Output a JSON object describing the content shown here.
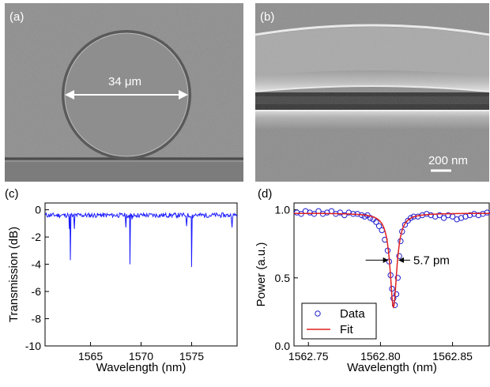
{
  "panels": {
    "a": {
      "label": "(a)",
      "scale_text": "34 μm"
    },
    "b": {
      "label": "(b)",
      "scale_text": "200 nm"
    }
  },
  "chart_data": [
    {
      "panel": "(c)",
      "type": "line",
      "xlabel": "Wavelength (nm)",
      "ylabel": "Transmission (dB)",
      "xlim": [
        1560.5,
        1579.5
      ],
      "ylim": [
        -10,
        0.5
      ],
      "xticks": [
        1565,
        1570,
        1575
      ],
      "yticks": [
        0,
        -2,
        -4,
        -6,
        -8,
        -10
      ],
      "grid": false,
      "series": [
        {
          "color": "#1a1aff",
          "baseline_db": -0.4,
          "x": [
            1560.5,
            1562.3,
            1562.8,
            1562.9,
            1563.0,
            1563.2,
            1563.4,
            1564.0,
            1566.0,
            1568.0,
            1568.5,
            1568.7,
            1568.8,
            1568.9,
            1569.0,
            1569.1,
            1569.3,
            1569.5,
            1571.0,
            1573.0,
            1574.3,
            1574.5,
            1574.9,
            1575.0,
            1575.1,
            1575.2,
            1575.4,
            1577.0,
            1578.8,
            1579.0,
            1579.2,
            1579.5
          ],
          "y": [
            -0.3,
            -0.35,
            -0.4,
            -1.4,
            -3.7,
            -0.5,
            -1.4,
            -0.3,
            -0.3,
            -0.35,
            -1.3,
            -0.5,
            -0.6,
            -4.0,
            -0.5,
            -0.7,
            -0.3,
            -0.4,
            -0.3,
            -0.35,
            -0.4,
            -1.2,
            -0.5,
            -4.2,
            -0.6,
            -0.4,
            -0.3,
            -0.35,
            -0.4,
            -1.3,
            -0.4,
            -0.5
          ]
        }
      ]
    },
    {
      "panel": "(d)",
      "type": "scatter",
      "xlabel": "Wavelength (nm)",
      "ylabel": "Power (a.u.)",
      "xlim": [
        1562.74,
        1562.876
      ],
      "ylim": [
        0.0,
        1.05
      ],
      "xticks": [
        1562.75,
        1562.8,
        1562.85
      ],
      "yticks": [
        0.0,
        0.5,
        1.0
      ],
      "grid": false,
      "legend_position": "bottom-left",
      "annotation": "5.7 pm",
      "series": [
        {
          "name": "Data",
          "marker": "open-circle",
          "color": "#2020d0",
          "x": [
            1562.742,
            1562.745,
            1562.748,
            1562.751,
            1562.754,
            1562.757,
            1562.76,
            1562.763,
            1562.766,
            1562.769,
            1562.772,
            1562.775,
            1562.778,
            1562.781,
            1562.784,
            1562.787,
            1562.789,
            1562.791,
            1562.793,
            1562.795,
            1562.797,
            1562.799,
            1562.801,
            1562.803,
            1562.805,
            1562.806,
            1562.807,
            1562.808,
            1562.809,
            1562.81,
            1562.811,
            1562.812,
            1562.813,
            1562.814,
            1562.815,
            1562.817,
            1562.819,
            1562.821,
            1562.823,
            1562.826,
            1562.829,
            1562.832,
            1562.835,
            1562.838,
            1562.841,
            1562.844,
            1562.847,
            1562.85,
            1562.853,
            1562.856,
            1562.859,
            1562.862,
            1562.865,
            1562.868,
            1562.871,
            1562.874
          ],
          "y": [
            0.98,
            0.97,
            0.99,
            0.98,
            0.97,
            0.99,
            0.97,
            0.98,
            0.99,
            0.97,
            0.98,
            0.96,
            0.98,
            0.97,
            0.97,
            0.96,
            0.95,
            0.96,
            0.94,
            0.93,
            0.91,
            0.88,
            0.85,
            0.78,
            0.7,
            0.62,
            0.52,
            0.42,
            0.35,
            0.3,
            0.38,
            0.5,
            0.66,
            0.77,
            0.84,
            0.89,
            0.92,
            0.94,
            0.95,
            0.95,
            0.96,
            0.97,
            0.96,
            0.95,
            0.96,
            0.94,
            0.96,
            0.95,
            0.93,
            0.94,
            0.95,
            0.96,
            0.97,
            0.96,
            0.97,
            0.98
          ]
        },
        {
          "name": "Fit",
          "color": "#e02020",
          "model": "lorentzian",
          "center": 1562.809,
          "fwhm": 0.0057,
          "depth": 0.69,
          "baseline": 0.975
        }
      ]
    }
  ]
}
